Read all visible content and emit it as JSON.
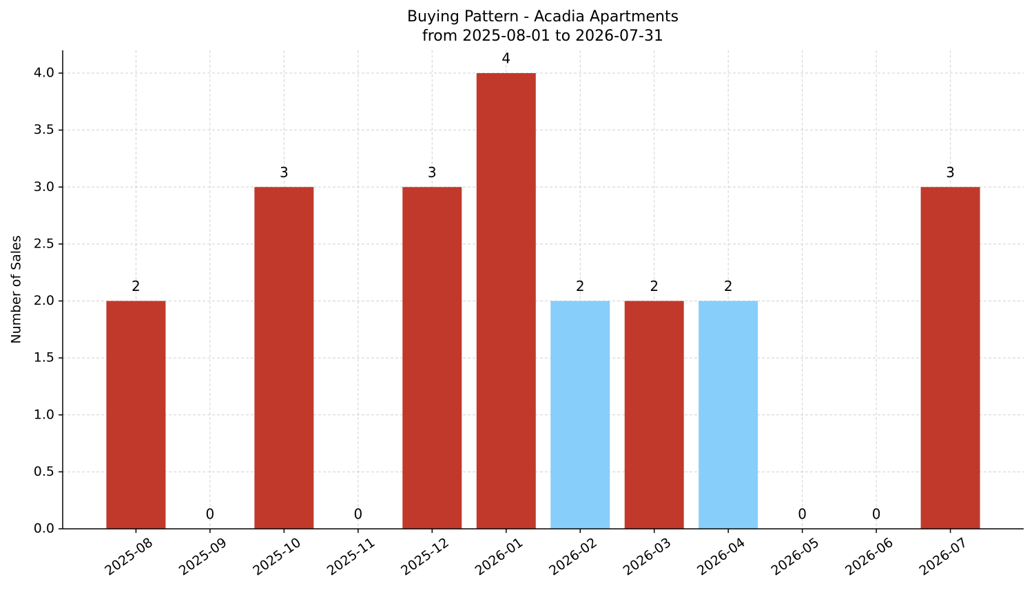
{
  "chart_data": {
    "type": "bar",
    "title": "Buying Pattern - Acadia Apartments",
    "subtitle": "from 2025-08-01 to 2026-07-31",
    "y_label": "Number of Sales",
    "categories": [
      "2025-08",
      "2025-09",
      "2025-10",
      "2025-11",
      "2025-12",
      "2026-01",
      "2026-02",
      "2026-03",
      "2026-04",
      "2026-05",
      "2026-06",
      "2026-07"
    ],
    "values": [
      2,
      0,
      3,
      0,
      3,
      4,
      2,
      2,
      2,
      0,
      0,
      3
    ],
    "colors": [
      "#c0392b",
      "#c0392b",
      "#c0392b",
      "#c0392b",
      "#c0392b",
      "#c0392b",
      "#87cefa",
      "#c0392b",
      "#87cefa",
      "#c0392b",
      "#c0392b",
      "#c0392b"
    ],
    "ylim": [
      0,
      4.2
    ],
    "yticks": [
      {
        "value": 0,
        "label": "0.0"
      },
      0.5,
      {
        "value": 1,
        "label": "1.0"
      },
      1.5,
      {
        "value": 2,
        "label": "2.0"
      },
      2.5,
      {
        "value": 3,
        "label": "3.0"
      },
      3.5,
      {
        "value": 4,
        "label": "4.0"
      }
    ],
    "grid": true
  }
}
